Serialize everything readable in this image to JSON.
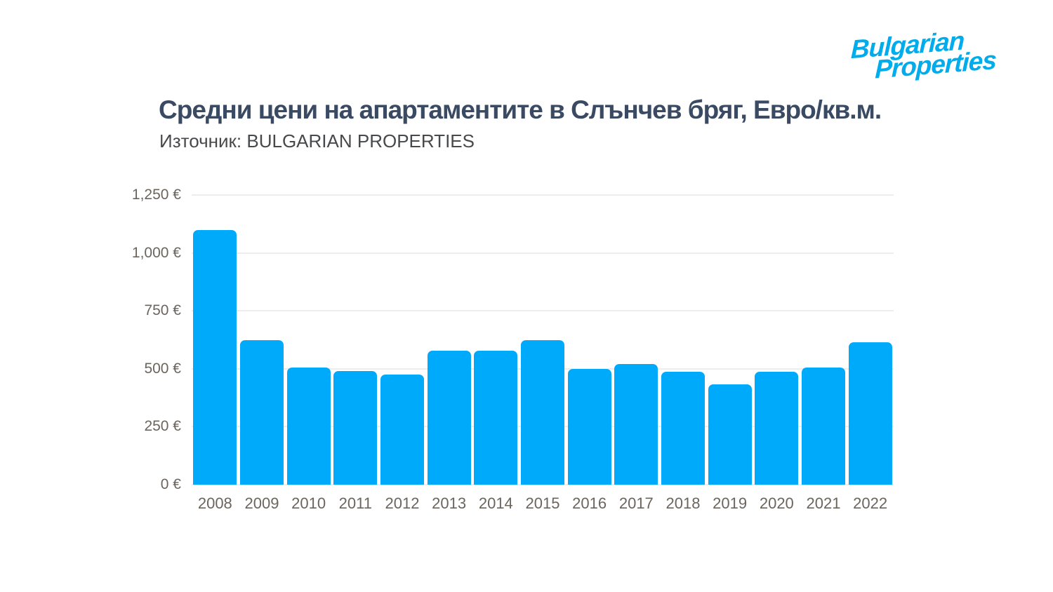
{
  "logo": {
    "line1": "Bulgarian",
    "line2": "Properties",
    "color": "#00ACEC"
  },
  "header": {
    "title": "Средни цени на апартаментите в Слънчев бряг, Евро/кв.м.",
    "subtitle": "Източник: BULGARIAN PROPERTIES",
    "title_color": "#3A4A63",
    "subtitle_color": "#48494B"
  },
  "chart_data": {
    "type": "bar",
    "title": "Средни цени на апартаментите в Слънчев бряг, Евро/кв.м.",
    "source": "Източник: BULGARIAN PROPERTIES",
    "categories": [
      "2008",
      "2009",
      "2010",
      "2011",
      "2012",
      "2013",
      "2014",
      "2015",
      "2016",
      "2017",
      "2018",
      "2019",
      "2020",
      "2021",
      "2022"
    ],
    "values": [
      1100,
      625,
      505,
      490,
      475,
      577,
      578,
      625,
      500,
      520,
      487,
      433,
      486,
      505,
      615
    ],
    "unit": "€/кв.м.",
    "xlabel": "",
    "ylabel": "",
    "ylim": [
      0,
      1250
    ],
    "yticks": [
      0,
      250,
      500,
      750,
      1000,
      1250
    ],
    "ytick_labels": [
      "0 €",
      "250 €",
      "500 €",
      "750 €",
      "1,000 €",
      "1,250 €"
    ],
    "grid": true,
    "legend": false,
    "bar_color": "#00AAFB",
    "gridline_color": "#EDEDED",
    "axis_label_color": "#6B655E"
  }
}
